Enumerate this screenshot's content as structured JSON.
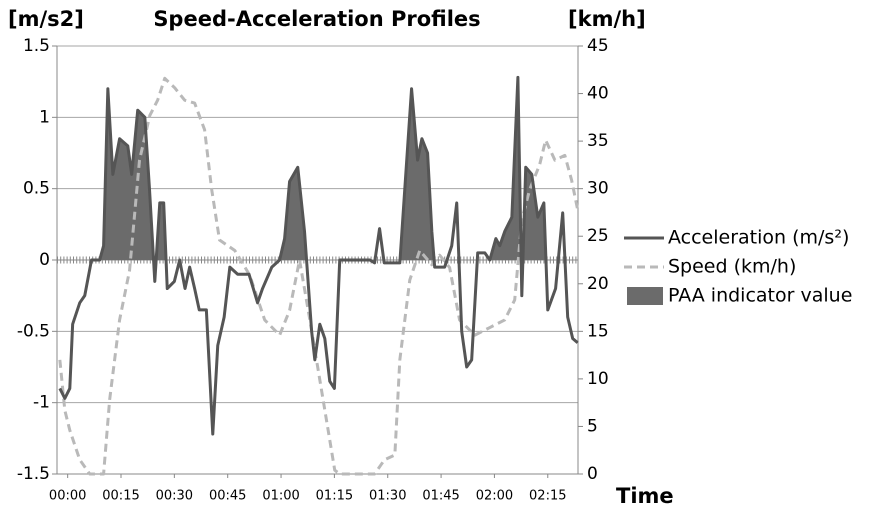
{
  "chart_data": {
    "type": "line",
    "title": "Speed-Acceleration Profiles",
    "y_label": "[m/s2]",
    "y2_label": "[km/h]",
    "x_label": "Time",
    "xlim": [
      -3,
      143.5
    ],
    "xticks": [
      {
        "value": 0,
        "label": "00:00"
      },
      {
        "value": 15,
        "label": "00:15"
      },
      {
        "value": 30,
        "label": "00:30"
      },
      {
        "value": 45,
        "label": "00:45"
      },
      {
        "value": 60,
        "label": "01:00"
      },
      {
        "value": 75,
        "label": "01:15"
      },
      {
        "value": 90,
        "label": "01:30"
      },
      {
        "value": 105,
        "label": "01:45"
      },
      {
        "value": 120,
        "label": "02:00"
      },
      {
        "value": 135,
        "label": "02:15"
      }
    ],
    "ylim": [
      -1.5,
      1.5
    ],
    "yticks": [
      -1.5,
      -1,
      -0.5,
      0,
      0.5,
      1,
      1.5
    ],
    "y2lim": [
      0,
      45
    ],
    "y2ticks": [
      0,
      5,
      10,
      15,
      20,
      25,
      30,
      35,
      40,
      45
    ],
    "grid": true,
    "legend": "right",
    "series": [
      {
        "name": "PAA indicator value",
        "kind": "area",
        "color": "#6b6b6b",
        "x": [
          8,
          9,
          10.1,
          11.3,
          12.7,
          14.6,
          16.9,
          18,
          19.7,
          21.7,
          23,
          24.2,
          24.6,
          25,
          25.9,
          27,
          27.6,
          40,
          59.6,
          61,
          62.4,
          64.7,
          66.6,
          67.5,
          80,
          93.4,
          94.8,
          96.7,
          98.4,
          99.6,
          101.2,
          102.4,
          103,
          110,
          119,
          120.4,
          121.5,
          122.9,
          124.9,
          126.6,
          127.3,
          127.6,
          128,
          128.8,
          130.5,
          132.2,
          133.9,
          134.5
        ],
        "values": [
          0,
          0,
          0.1,
          1.2,
          0.6,
          0.85,
          0.8,
          0.6,
          1.05,
          1.0,
          0.5,
          0,
          null,
          0,
          0.4,
          0.4,
          0,
          null,
          0,
          0.15,
          0.55,
          0.65,
          0.2,
          0,
          null,
          0,
          0.5,
          1.2,
          0.7,
          0.85,
          0.75,
          0.2,
          0,
          null,
          0,
          0.15,
          0.1,
          0.2,
          0.3,
          1.28,
          0,
          null,
          0,
          0.65,
          0.6,
          0.3,
          0.4,
          0
        ]
      },
      {
        "name": "Speed (km/h)",
        "kind": "line",
        "dashed": true,
        "axis": "y2",
        "color": "#b9b9b9",
        "x": [
          -2.2,
          -0.8,
          0.6,
          3.4,
          6.2,
          10.1,
          11.8,
          14.6,
          17.4,
          20.2,
          23.1,
          25.3,
          27.3,
          30.1,
          32.9,
          35.7,
          38.5,
          40.5,
          42.7,
          47,
          51.2,
          55.4,
          59.6,
          62.4,
          65.2,
          68.1,
          70.9,
          75.1,
          76.5,
          86.3,
          89.1,
          92,
          93.4,
          96.2,
          99,
          102.4,
          104.6,
          107.4,
          110.2,
          114.5,
          118.7,
          122.9,
          125.7,
          127.7,
          129.9,
          132.7,
          134.4,
          137,
          139.8,
          141.7,
          143.4
        ],
        "values": [
          12,
          6.7,
          4.6,
          1.5,
          0,
          0,
          7.8,
          16.2,
          21.4,
          33,
          37.7,
          39.3,
          41.6,
          40.6,
          39.3,
          39,
          36.2,
          29.9,
          24.6,
          23.5,
          20.9,
          16.2,
          14.6,
          17.2,
          22.5,
          16.2,
          9.9,
          0.4,
          0,
          0,
          1.5,
          2,
          12,
          20.4,
          23.5,
          22,
          23,
          21.7,
          16.2,
          14.6,
          15.4,
          16.2,
          18.3,
          26.7,
          29.9,
          32.5,
          35.1,
          33,
          33.5,
          30.9,
          27.8
        ]
      },
      {
        "name": "Acceleration (m/s²)",
        "kind": "line",
        "color": "#555555",
        "x": [
          -2.2,
          -0.8,
          0.6,
          1.4,
          3.4,
          4.8,
          6.7,
          9,
          10.1,
          11.3,
          12.7,
          14.6,
          16.9,
          18,
          19.7,
          21.7,
          23,
          24.5,
          25.9,
          27,
          28,
          30,
          31.5,
          33,
          34.3,
          35.7,
          37,
          39,
          40.8,
          42.2,
          44,
          45.6,
          47.8,
          51,
          53.4,
          54.8,
          57.4,
          59.6,
          61,
          62.4,
          64.7,
          66.6,
          68.6,
          69.5,
          70.9,
          72.3,
          73.7,
          75,
          76.5,
          85,
          86.3,
          87.7,
          89,
          93.4,
          94.8,
          96.7,
          98.4,
          99.6,
          101.2,
          102.4,
          103.2,
          106,
          108,
          109.4,
          110.8,
          112.2,
          113.6,
          115.3,
          117.3,
          118.7,
          120.4,
          121.5,
          122.9,
          124.9,
          126.6,
          127.7,
          128.8,
          130.5,
          132.2,
          133.9,
          135,
          137.2,
          139.2,
          140.6,
          142,
          143.4
        ],
        "values": [
          -0.9,
          -0.97,
          -0.9,
          -0.45,
          -0.3,
          -0.25,
          0,
          0,
          0.1,
          1.2,
          0.6,
          0.85,
          0.8,
          0.6,
          1.05,
          1.0,
          0.5,
          -0.15,
          0.4,
          0.4,
          -0.2,
          -0.15,
          0,
          -0.2,
          -0.05,
          -0.2,
          -0.35,
          -0.35,
          -1.22,
          -0.6,
          -0.4,
          -0.05,
          -0.1,
          -0.1,
          -0.3,
          -0.2,
          -0.05,
          0,
          0.15,
          0.55,
          0.65,
          0.2,
          -0.5,
          -0.7,
          -0.45,
          -0.55,
          -0.85,
          -0.9,
          0,
          0,
          -0.02,
          0.22,
          -0.02,
          -0.02,
          0.5,
          1.2,
          0.7,
          0.85,
          0.75,
          0.2,
          -0.05,
          -0.05,
          0.1,
          0.4,
          -0.5,
          -0.75,
          -0.7,
          0.05,
          0.05,
          0,
          0.15,
          0.1,
          0.2,
          0.3,
          1.28,
          -0.25,
          0.65,
          0.6,
          0.3,
          0.4,
          -0.35,
          -0.2,
          0.33,
          -0.4,
          -0.55,
          -0.58
        ]
      }
    ]
  }
}
